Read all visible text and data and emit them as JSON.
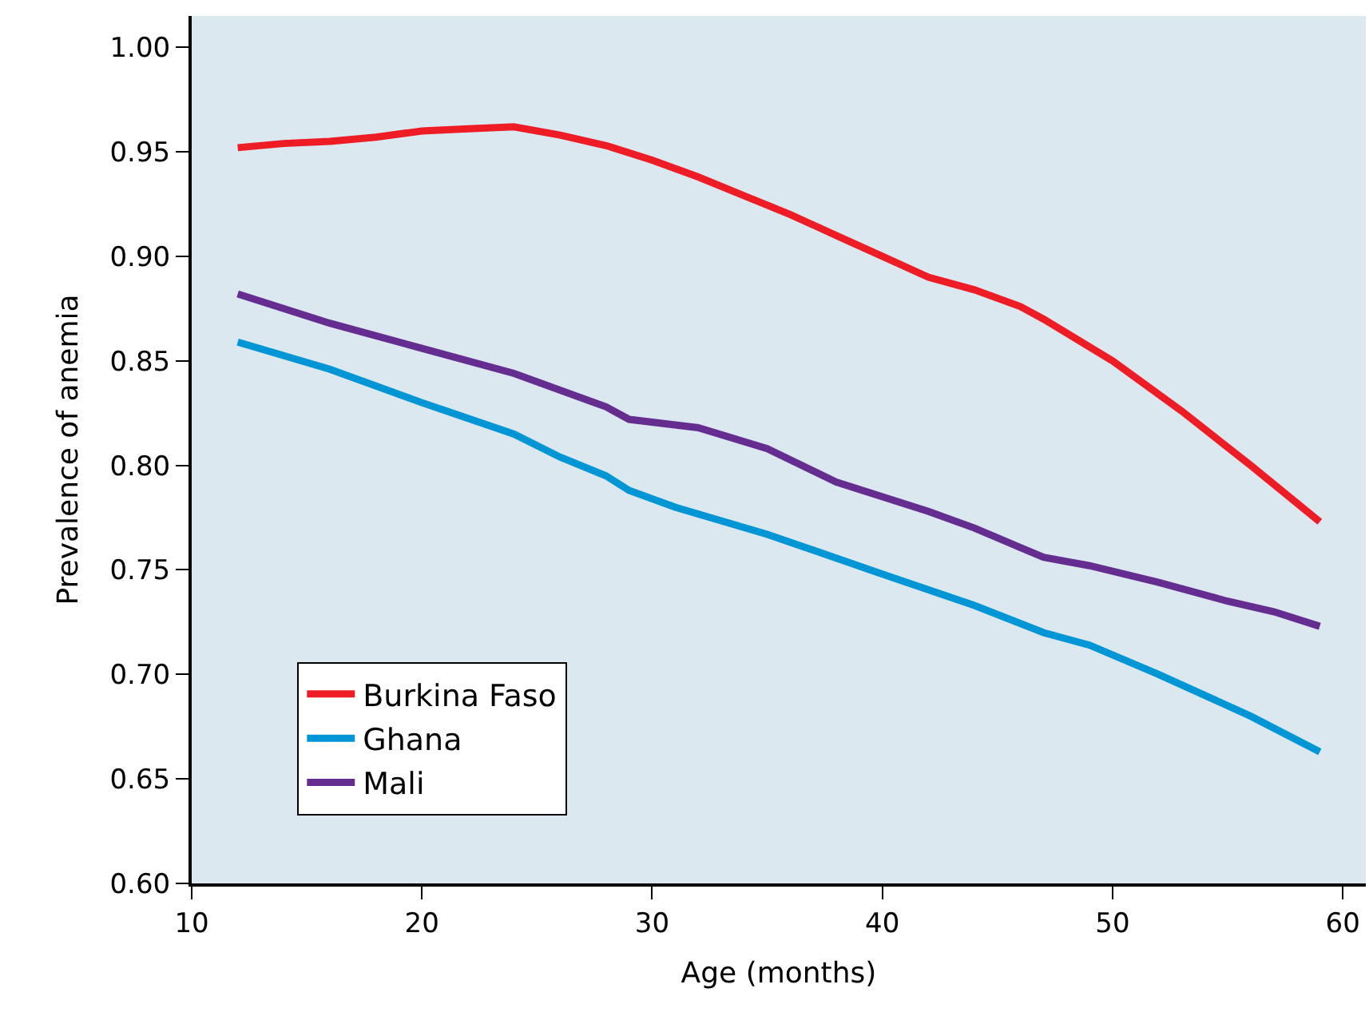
{
  "chart_data": {
    "type": "line",
    "xlabel": "Age (months)",
    "ylabel": "Prevalence of anemia",
    "xlim": [
      10,
      61
    ],
    "xticks": [
      10,
      20,
      30,
      40,
      50,
      60
    ],
    "ylim": [
      0.6,
      1.015
    ],
    "yticks": [
      {
        "value": 0.6,
        "label": "0.60"
      },
      {
        "value": 0.65,
        "label": "0.65"
      },
      {
        "value": 0.7,
        "label": "0.70"
      },
      {
        "value": 0.75,
        "label": "0.75"
      },
      {
        "value": 0.8,
        "label": "0.80"
      },
      {
        "value": 0.85,
        "label": "0.85"
      },
      {
        "value": 0.9,
        "label": "0.90"
      },
      {
        "value": 0.95,
        "label": "0.95"
      },
      {
        "value": 1.0,
        "label": "1.00"
      }
    ],
    "grid": false,
    "legend": "bottom left",
    "marker": "none",
    "line_style": "solid",
    "series": [
      {
        "name": "Burkina Faso",
        "color": "#ee1c25",
        "x": [
          12,
          14,
          16,
          18,
          20,
          22,
          24,
          26,
          28,
          30,
          32,
          34,
          36,
          38,
          40,
          42,
          44,
          46,
          47,
          50,
          53,
          56,
          59
        ],
        "values": [
          0.952,
          0.954,
          0.955,
          0.957,
          0.96,
          0.961,
          0.962,
          0.958,
          0.953,
          0.946,
          0.938,
          0.929,
          0.92,
          0.91,
          0.9,
          0.89,
          0.884,
          0.876,
          0.87,
          0.85,
          0.826,
          0.8,
          0.773
        ]
      },
      {
        "name": "Ghana",
        "color": "#0096d6",
        "x": [
          12,
          16,
          20,
          24,
          26,
          28,
          29,
          31,
          35,
          40,
          44,
          47,
          49,
          52,
          56,
          59
        ],
        "values": [
          0.859,
          0.846,
          0.83,
          0.815,
          0.804,
          0.795,
          0.788,
          0.78,
          0.767,
          0.748,
          0.733,
          0.72,
          0.714,
          0.7,
          0.68,
          0.663
        ]
      },
      {
        "name": "Mali",
        "color": "#662d91",
        "x": [
          12,
          16,
          20,
          24,
          28,
          29,
          32,
          35,
          38,
          42,
          44,
          47,
          49,
          52,
          55,
          57,
          59
        ],
        "values": [
          0.882,
          0.868,
          0.856,
          0.844,
          0.828,
          0.822,
          0.818,
          0.808,
          0.792,
          0.778,
          0.77,
          0.756,
          0.752,
          0.744,
          0.735,
          0.73,
          0.723
        ]
      }
    ]
  }
}
